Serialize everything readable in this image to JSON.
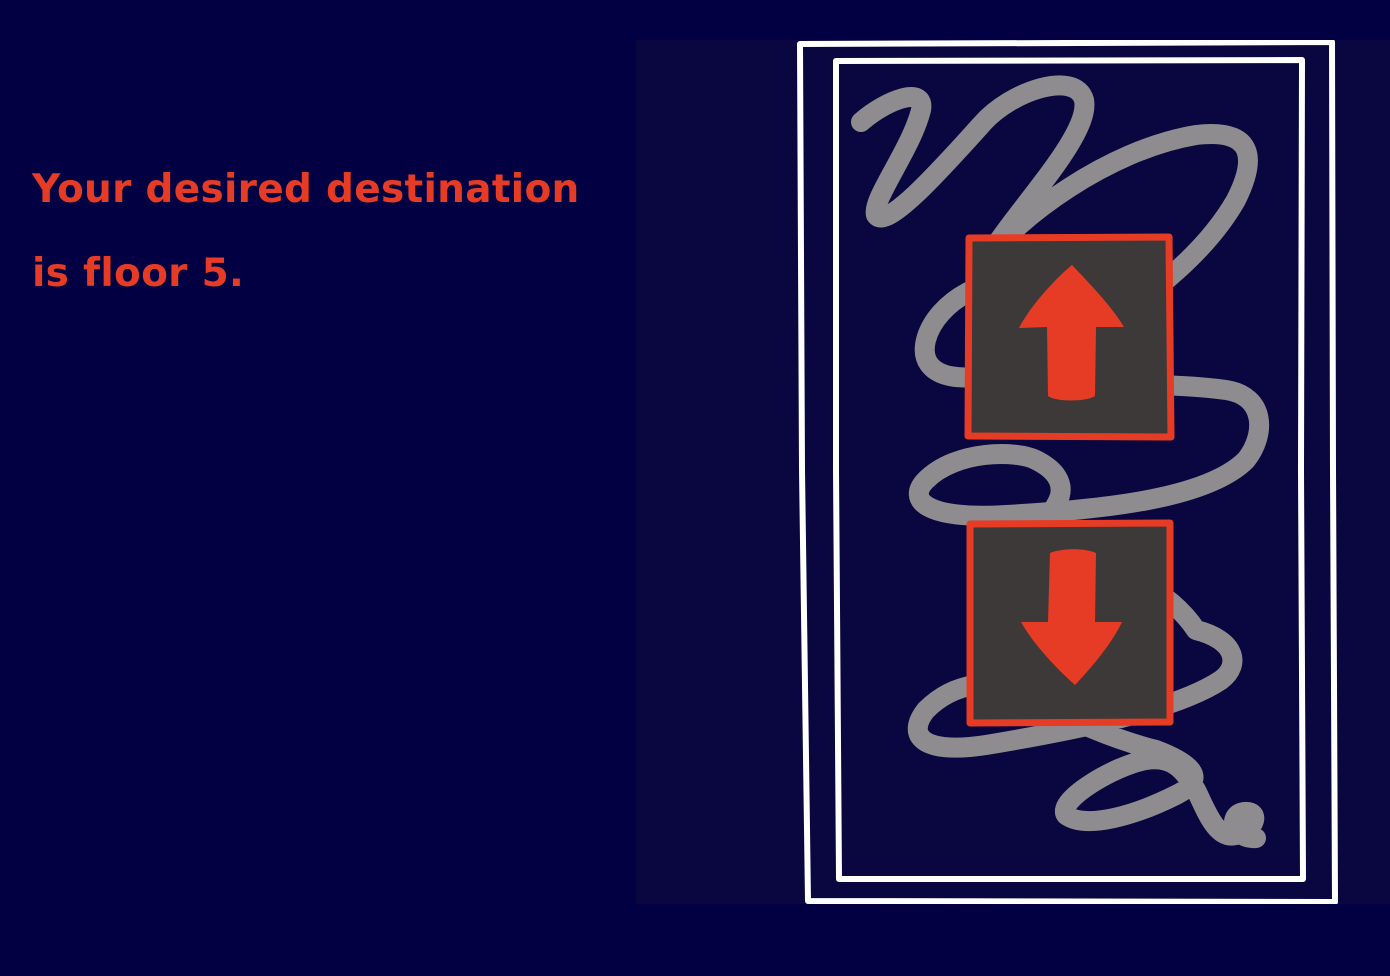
{
  "message": {
    "line1": "Your desired destination",
    "line2": "is floor 5."
  },
  "elevator_panel": {
    "buttons": [
      {
        "id": "up",
        "icon": "arrow-up-icon"
      },
      {
        "id": "down",
        "icon": "arrow-down-icon"
      }
    ]
  },
  "colors": {
    "background": "#020042",
    "panel_background": "#090640",
    "text_accent": "#e63c25",
    "button_fill": "#3d3938",
    "button_border": "#e63c25",
    "arrow": "#e63c25",
    "frame": "#ffffff",
    "squiggle": "#8f8c8f"
  }
}
